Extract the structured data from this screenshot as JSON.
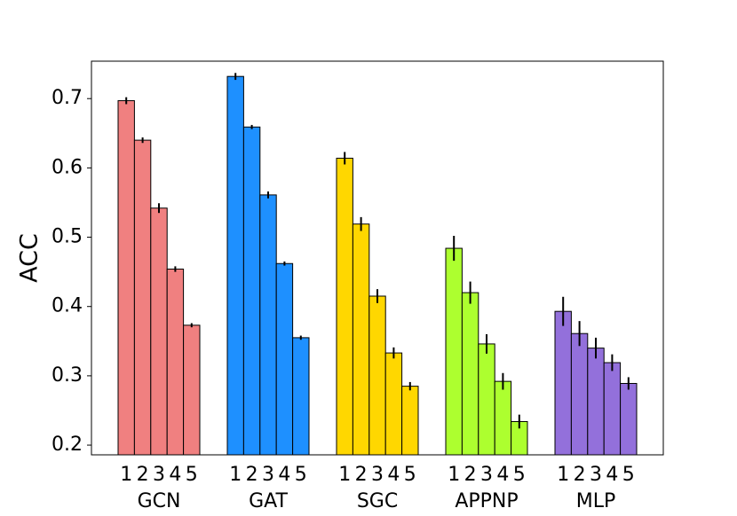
{
  "chart_data": {
    "type": "bar",
    "ylabel": "ACC",
    "categories": [
      "GCN",
      "GAT",
      "SGC",
      "APPNP",
      "MLP"
    ],
    "colors": [
      "#f08080",
      "#1e90ff",
      "#ffd700",
      "#adff2f",
      "#9370db"
    ],
    "sub_labels": [
      "1",
      "2",
      "3",
      "4",
      "5"
    ],
    "values": [
      [
        0.697,
        0.64,
        0.542,
        0.454,
        0.373
      ],
      [
        0.732,
        0.659,
        0.561,
        0.462,
        0.355
      ],
      [
        0.614,
        0.519,
        0.415,
        0.333,
        0.285
      ],
      [
        0.484,
        0.42,
        0.346,
        0.292,
        0.234
      ],
      [
        0.393,
        0.361,
        0.34,
        0.319,
        0.289
      ]
    ],
    "errors": [
      [
        0.005,
        0.004,
        0.007,
        0.004,
        0.003
      ],
      [
        0.005,
        0.003,
        0.005,
        0.003,
        0.003
      ],
      [
        0.009,
        0.01,
        0.01,
        0.008,
        0.006
      ],
      [
        0.018,
        0.016,
        0.014,
        0.012,
        0.01
      ],
      [
        0.021,
        0.018,
        0.015,
        0.012,
        0.009
      ]
    ],
    "ylim": [
      0.186,
      0.754
    ],
    "yticks": [
      0.2,
      0.3,
      0.4,
      0.5,
      0.6,
      0.7
    ]
  }
}
